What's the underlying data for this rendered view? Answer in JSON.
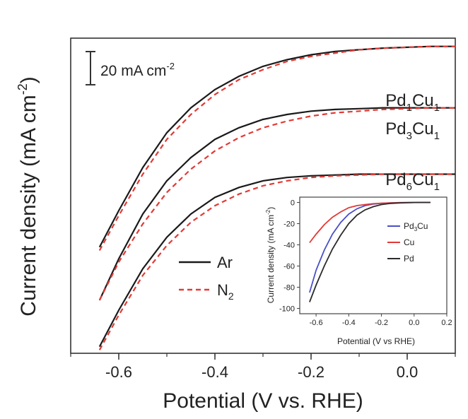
{
  "chart_data": [
    {
      "type": "line",
      "xlabel": "Potential (V vs. RHE)",
      "ylabel": "Current density (mA cm-2)",
      "ylabel_parts": {
        "main": "Current density (mA cm",
        "sup": "-2",
        "end": ")"
      },
      "xlim": [
        -0.7,
        0.1
      ],
      "ylim": [
        -188,
        2
      ],
      "x_ticks": [
        -0.6,
        -0.4,
        -0.2,
        0.0
      ],
      "x_tick_labels": [
        "-0.6",
        "-0.4",
        "-0.2",
        "0.0"
      ],
      "y_ticks_shown": false,
      "scale_bar": {
        "label": "20 mA cm",
        "sup": "-2",
        "length": 20
      },
      "legend": {
        "placement": "center",
        "entries": [
          {
            "label": "Ar",
            "sub": "",
            "color": "#1a1a1a",
            "dash": "solid"
          },
          {
            "label": "N",
            "sub": "2",
            "color": "#e23a35",
            "dash": "dashed"
          }
        ]
      },
      "curve_labels": [
        {
          "main": "Pd",
          "sub1": "1",
          "mid": "Cu",
          "sub2": "1"
        },
        {
          "main": "Pd",
          "sub1": "3",
          "mid": "Cu",
          "sub2": "1"
        },
        {
          "main": "Pd",
          "sub1": "6",
          "mid": "Cu",
          "sub2": "1"
        }
      ],
      "x": [
        -0.64,
        -0.6,
        -0.55,
        -0.5,
        -0.45,
        -0.4,
        -0.35,
        -0.3,
        -0.25,
        -0.2,
        -0.15,
        -0.1,
        -0.05,
        0.0,
        0.05,
        0.1
      ],
      "series": [
        {
          "name": "Ar",
          "group": "Pd1Cu1",
          "color": "#1a1a1a",
          "dash": "solid",
          "values": [
            -124,
            -102,
            -76,
            -55,
            -40,
            -29,
            -21,
            -15,
            -11,
            -8,
            -6,
            -5,
            -4,
            -3.5,
            -3,
            -3
          ]
        },
        {
          "name": "N2",
          "group": "Pd1Cu1",
          "color": "#e23a35",
          "dash": "dashed",
          "values": [
            -126,
            -105,
            -80,
            -59,
            -44,
            -32,
            -23,
            -17,
            -12,
            -9,
            -7,
            -5,
            -4,
            -3.5,
            -3,
            -3
          ]
        },
        {
          "name": "Ar",
          "group": "Pd3Cu1",
          "color": "#1a1a1a",
          "dash": "solid",
          "values": [
            -156,
            -131,
            -104,
            -84,
            -70,
            -59,
            -52,
            -47,
            -44,
            -42,
            -41,
            -40.5,
            -40,
            -40,
            -40,
            -40
          ]
        },
        {
          "name": "N2",
          "group": "Pd3Cu1",
          "color": "#e23a35",
          "dash": "dashed",
          "values": [
            -156,
            -133,
            -110,
            -91,
            -77,
            -66,
            -58,
            -52,
            -48,
            -45,
            -43,
            -42,
            -41,
            -40.5,
            -40,
            -40
          ]
        },
        {
          "name": "Ar",
          "group": "Pd6Cu1",
          "color": "#1a1a1a",
          "dash": "solid",
          "values": [
            -184,
            -162,
            -137,
            -118,
            -104,
            -94,
            -88,
            -84,
            -82,
            -81,
            -80.5,
            -80,
            -80,
            -80,
            -80,
            -80
          ]
        },
        {
          "name": "N2",
          "group": "Pd6Cu1",
          "color": "#e23a35",
          "dash": "dashed",
          "values": [
            -186,
            -165,
            -141,
            -123,
            -109,
            -99,
            -92,
            -87,
            -84,
            -82,
            -81,
            -80.5,
            -80,
            -80,
            -80,
            -80
          ]
        }
      ]
    },
    {
      "type": "line",
      "xlabel": "Potential (V vs RHE)",
      "ylabel": "Current density (mA cm-2)",
      "ylabel_parts": {
        "main": "Current density (mA cm",
        "sup": "-2",
        "end": ")"
      },
      "xlim": [
        -0.7,
        0.2
      ],
      "ylim": [
        -105,
        5
      ],
      "x_ticks": [
        -0.6,
        -0.4,
        -0.2,
        0.0,
        0.2
      ],
      "x_tick_labels": [
        "-0.6",
        "-0.4",
        "-0.2",
        "0.0",
        "0.2"
      ],
      "y_ticks": [
        0,
        -20,
        -40,
        -60,
        -80,
        -100
      ],
      "y_tick_labels": [
        "0",
        "-20",
        "-40",
        "-60",
        "-80",
        "-100"
      ],
      "legend": {
        "placement": "right",
        "entries": [
          {
            "label": "Pd",
            "sub": "3",
            "after": "Cu",
            "color": "#4a50c8"
          },
          {
            "label": "Cu",
            "sub": "",
            "after": "",
            "color": "#e23a35"
          },
          {
            "label": "Pd",
            "sub": "",
            "after": "",
            "color": "#2b2b2b"
          }
        ]
      },
      "x": [
        -0.64,
        -0.6,
        -0.55,
        -0.5,
        -0.45,
        -0.4,
        -0.35,
        -0.3,
        -0.25,
        -0.2,
        -0.15,
        -0.1,
        -0.05,
        0.0,
        0.05,
        0.1
      ],
      "series": [
        {
          "name": "Pd3Cu",
          "color": "#4a50c8",
          "values": [
            -85,
            -64,
            -45,
            -30,
            -19,
            -11,
            -6,
            -3,
            -1.5,
            -0.8,
            -0.4,
            -0.2,
            -0.1,
            0,
            0,
            0
          ]
        },
        {
          "name": "Cu",
          "color": "#e23a35",
          "values": [
            -38,
            -30,
            -21,
            -14,
            -9,
            -5,
            -3,
            -2,
            -1.2,
            -0.8,
            -0.5,
            -0.3,
            -0.2,
            -0.1,
            0,
            0
          ]
        },
        {
          "name": "Pd",
          "color": "#2b2b2b",
          "values": [
            -94,
            -78,
            -60,
            -44,
            -31,
            -20,
            -12,
            -7,
            -4,
            -2,
            -1,
            -0.5,
            -0.3,
            -0.1,
            0,
            0
          ]
        }
      ]
    }
  ]
}
